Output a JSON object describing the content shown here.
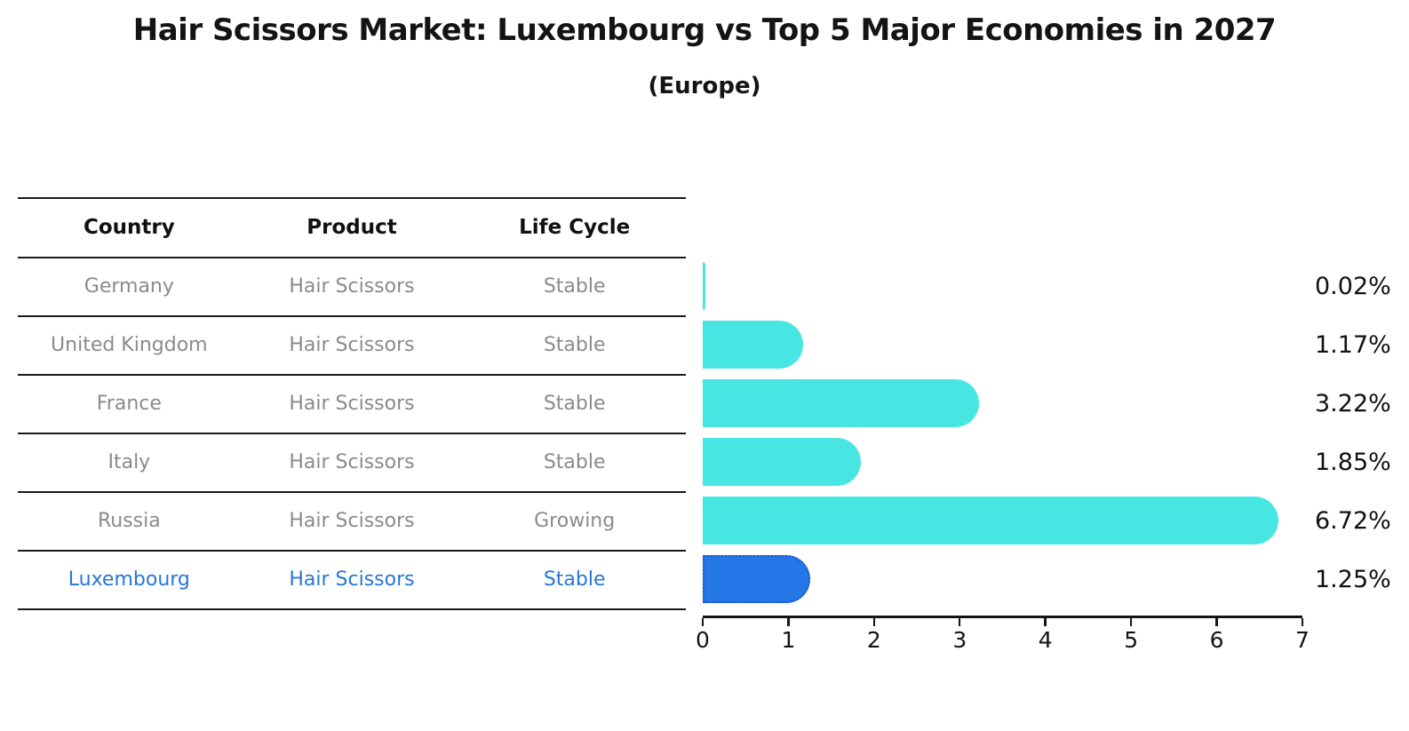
{
  "title": "Hair Scissors Market: Luxembourg vs Top 5 Major Economies in 2027",
  "subtitle": "(Europe)",
  "table": {
    "headers": [
      "Country",
      "Product",
      "Life Cycle"
    ],
    "highlight_text_color": "#2577d6",
    "rows": [
      {
        "country": "Germany",
        "product": "Hair Scissors",
        "life_cycle": "Stable"
      },
      {
        "country": "United Kingdom",
        "product": "Hair Scissors",
        "life_cycle": "Stable"
      },
      {
        "country": "France",
        "product": "Hair Scissors",
        "life_cycle": "Stable"
      },
      {
        "country": "Italy",
        "product": "Hair Scissors",
        "life_cycle": "Stable"
      },
      {
        "country": "Russia",
        "product": "Hair Scissors",
        "life_cycle": "Growing"
      },
      {
        "country": "Luxembourg",
        "product": "Hair Scissors",
        "life_cycle": "Stable"
      }
    ]
  },
  "chart_data": {
    "type": "bar",
    "orientation": "horizontal",
    "title": "Hair Scissors Market: Luxembourg vs Top 5 Major Economies in 2027 (Europe)",
    "categories": [
      "Germany",
      "United Kingdom",
      "France",
      "Italy",
      "Russia",
      "Luxembourg"
    ],
    "values": [
      0.02,
      1.17,
      3.22,
      1.85,
      6.72,
      1.25
    ],
    "labels": [
      "0.02%",
      "1.17%",
      "3.22%",
      "1.85%",
      "6.72%",
      "1.25%"
    ],
    "xlim": [
      0,
      7
    ],
    "x_ticks": [
      0,
      1,
      2,
      3,
      4,
      5,
      6,
      7
    ],
    "grid": false,
    "legend": false,
    "bar_color": "#47e6e2",
    "highlight_index": 5,
    "highlight_color": "#2577e8",
    "highlight_border_color": "#1857c8"
  }
}
